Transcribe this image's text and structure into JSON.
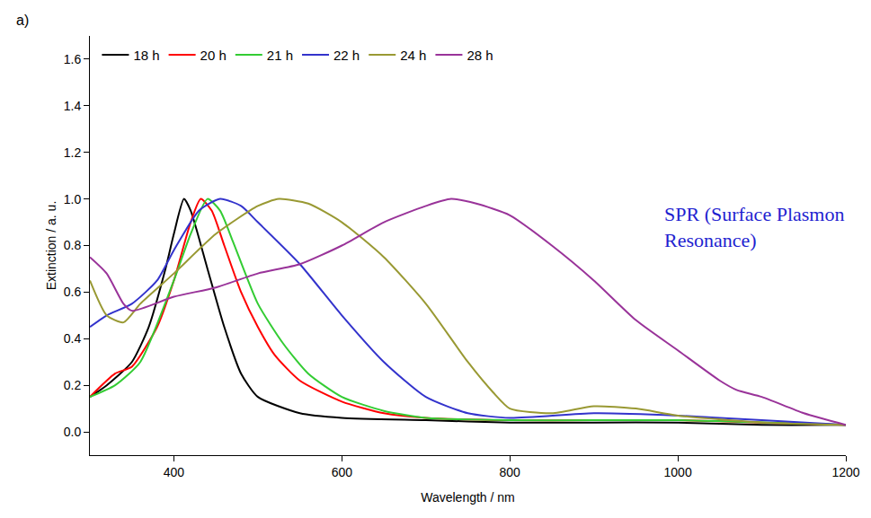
{
  "chart_data": {
    "type": "line",
    "x_label": "Wavelength / nm",
    "y_label": "Extinction / a. u.",
    "annotations": [
      "a)",
      "SPR (Surface Plasmon Resonance)"
    ],
    "xlim": [
      300,
      1200
    ],
    "xticks": [
      400,
      600,
      800,
      1000,
      1200
    ],
    "ylim": [
      -0.1,
      1.7
    ],
    "yticks": [
      {
        "value": 0,
        "label": "0.0"
      },
      {
        "value": 0.2,
        "label": "0.2"
      },
      {
        "value": 0.4,
        "label": "0.4"
      },
      {
        "value": 0.6,
        "label": "0.6"
      },
      {
        "value": 0.8,
        "label": "0.8"
      },
      {
        "value": 1.0,
        "label": "1.0"
      },
      {
        "value": 1.2,
        "label": "1.2"
      },
      {
        "value": 1.4,
        "label": "1.4"
      },
      {
        "value": 1.6,
        "label": "1.6"
      }
    ],
    "grid": false,
    "legend": "top left",
    "series": [
      {
        "name": "18 h",
        "color": "#000000",
        "x": [
          300,
          320,
          350,
          370,
          390,
          400,
          412,
          420,
          440,
          460,
          480,
          500,
          550,
          600,
          700,
          800,
          900,
          1000,
          1100,
          1200
        ],
        "values": [
          0.15,
          0.2,
          0.3,
          0.45,
          0.7,
          0.85,
          1.0,
          0.95,
          0.7,
          0.45,
          0.25,
          0.15,
          0.08,
          0.06,
          0.05,
          0.04,
          0.04,
          0.04,
          0.03,
          0.03
        ]
      },
      {
        "name": "20 h",
        "color": "#ff0000",
        "x": [
          300,
          330,
          350,
          380,
          400,
          420,
          432,
          445,
          460,
          480,
          500,
          520,
          550,
          600,
          650,
          700,
          800,
          900,
          1000,
          1100,
          1200
        ],
        "values": [
          0.15,
          0.25,
          0.28,
          0.45,
          0.65,
          0.9,
          1.0,
          0.95,
          0.8,
          0.6,
          0.45,
          0.33,
          0.22,
          0.13,
          0.08,
          0.06,
          0.05,
          0.05,
          0.05,
          0.04,
          0.03
        ]
      },
      {
        "name": "21 h",
        "color": "#33cc33",
        "x": [
          300,
          330,
          360,
          400,
          420,
          440,
          455,
          470,
          500,
          530,
          560,
          600,
          650,
          700,
          800,
          900,
          1000,
          1200
        ],
        "values": [
          0.15,
          0.2,
          0.3,
          0.65,
          0.85,
          1.0,
          0.95,
          0.82,
          0.55,
          0.38,
          0.25,
          0.15,
          0.09,
          0.06,
          0.05,
          0.05,
          0.05,
          0.03
        ]
      },
      {
        "name": "22 h",
        "color": "#3333cc",
        "x": [
          300,
          320,
          350,
          380,
          400,
          430,
          455,
          480,
          500,
          550,
          600,
          650,
          700,
          750,
          800,
          900,
          1000,
          1100,
          1200
        ],
        "values": [
          0.45,
          0.5,
          0.55,
          0.65,
          0.78,
          0.95,
          1.0,
          0.97,
          0.9,
          0.72,
          0.5,
          0.3,
          0.15,
          0.08,
          0.06,
          0.08,
          0.07,
          0.05,
          0.03
        ]
      },
      {
        "name": "24 h",
        "color": "#999933",
        "x": [
          300,
          320,
          340,
          360,
          400,
          450,
          500,
          525,
          560,
          600,
          650,
          700,
          750,
          780,
          800,
          850,
          900,
          950,
          1000,
          1100,
          1200
        ],
        "values": [
          0.65,
          0.5,
          0.47,
          0.55,
          0.68,
          0.85,
          0.97,
          1.0,
          0.98,
          0.9,
          0.75,
          0.55,
          0.3,
          0.17,
          0.1,
          0.08,
          0.11,
          0.1,
          0.07,
          0.04,
          0.03
        ]
      },
      {
        "name": "28 h",
        "color": "#993399",
        "x": [
          300,
          320,
          340,
          350,
          400,
          450,
          500,
          550,
          600,
          650,
          700,
          730,
          760,
          800,
          850,
          900,
          950,
          1000,
          1050,
          1070,
          1100,
          1150,
          1200
        ],
        "values": [
          0.75,
          0.68,
          0.55,
          0.52,
          0.58,
          0.62,
          0.68,
          0.72,
          0.8,
          0.9,
          0.97,
          1.0,
          0.98,
          0.93,
          0.8,
          0.65,
          0.48,
          0.35,
          0.22,
          0.18,
          0.15,
          0.08,
          0.03
        ]
      }
    ]
  }
}
